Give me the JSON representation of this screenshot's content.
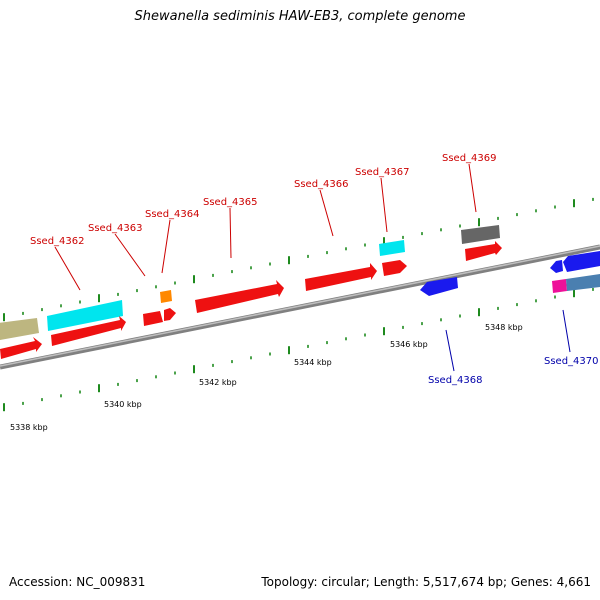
{
  "title": "Shewanella sediminis HAW-EB3, complete genome",
  "footer": {
    "accession": "Accession: NC_009831",
    "stats": "Topology: circular; Length: 5,517,674 bp; Genes: 4,661"
  },
  "colors": {
    "backbone": "#808080",
    "forward_label": "#cc0000",
    "reverse_label": "#0000aa",
    "tick": "#1e8a1e",
    "cds": "#ee1111",
    "trna_rrna": "#00e5ee",
    "misc": "#ff8800",
    "other": "#666666",
    "reverse_cds": "#1a1aee",
    "steelblue": "#4a7fb0",
    "pink": "#ee1199",
    "khaki": "#bdb680"
  },
  "scale_labels": [
    "5338 kbp",
    "5340 kbp",
    "5342 kbp",
    "5344 kbp",
    "5346 kbp",
    "5348 kbp"
  ],
  "genes": [
    {
      "name": "Ssed_4362",
      "strand": "forward"
    },
    {
      "name": "Ssed_4363",
      "strand": "forward"
    },
    {
      "name": "Ssed_4364",
      "strand": "forward"
    },
    {
      "name": "Ssed_4365",
      "strand": "forward"
    },
    {
      "name": "Ssed_4366",
      "strand": "forward"
    },
    {
      "name": "Ssed_4367",
      "strand": "forward"
    },
    {
      "name": "Ssed_4369",
      "strand": "forward"
    },
    {
      "name": "Ssed_4368",
      "strand": "reverse"
    },
    {
      "name": "Ssed_4370",
      "strand": "reverse"
    }
  ]
}
